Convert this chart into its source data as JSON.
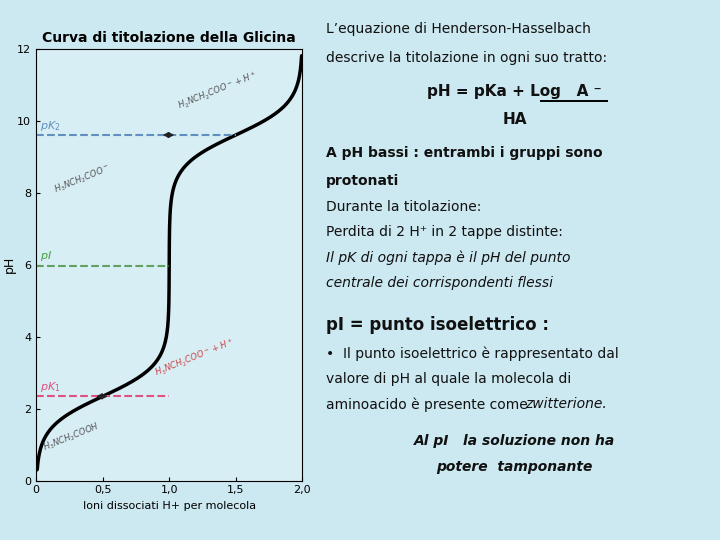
{
  "title": "Curva di titolazione della Glicina",
  "bg_color": "#cce8f0",
  "plot_bg_color": "#d8eef5",
  "xlabel": "Ioni dissociati H+ per molecola",
  "ylabel": "pH",
  "xlim": [
    0,
    2.0
  ],
  "ylim": [
    0,
    12
  ],
  "yticks": [
    0,
    2,
    4,
    6,
    8,
    10,
    12
  ],
  "xticks": [
    0,
    0.5,
    1.0,
    1.5,
    2.0
  ],
  "xtick_labels": [
    "0",
    "0,5",
    "1,0",
    "1,5",
    "2,0"
  ],
  "pK1": 2.34,
  "pK2": 9.6,
  "pI": 5.97,
  "curve_color": "#000000",
  "hline_pK1_color": "#e05080",
  "hline_pK2_color": "#6090c0",
  "hline_pI_color": "#60a060",
  "right_panel_bg": "#daedf5",
  "annotation_color_pK1": "#e05080",
  "annotation_color_pK2": "#6090c0",
  "annotation_color_pI": "#40a040"
}
